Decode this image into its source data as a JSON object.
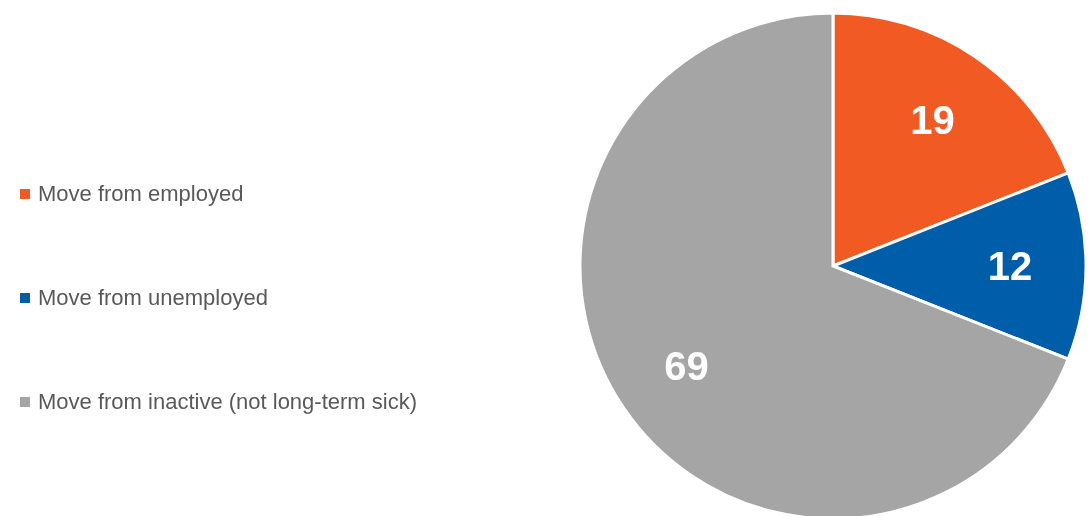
{
  "chart_data": {
    "type": "pie",
    "categories": [
      "Move from employed",
      "Move from unemployed",
      "Move from inactive (not long-term sick)"
    ],
    "values": [
      19,
      12,
      69
    ],
    "colors": [
      "#f15a22",
      "#005daa",
      "#a5a5a5"
    ],
    "data_labels": true,
    "legend": "left"
  }
}
